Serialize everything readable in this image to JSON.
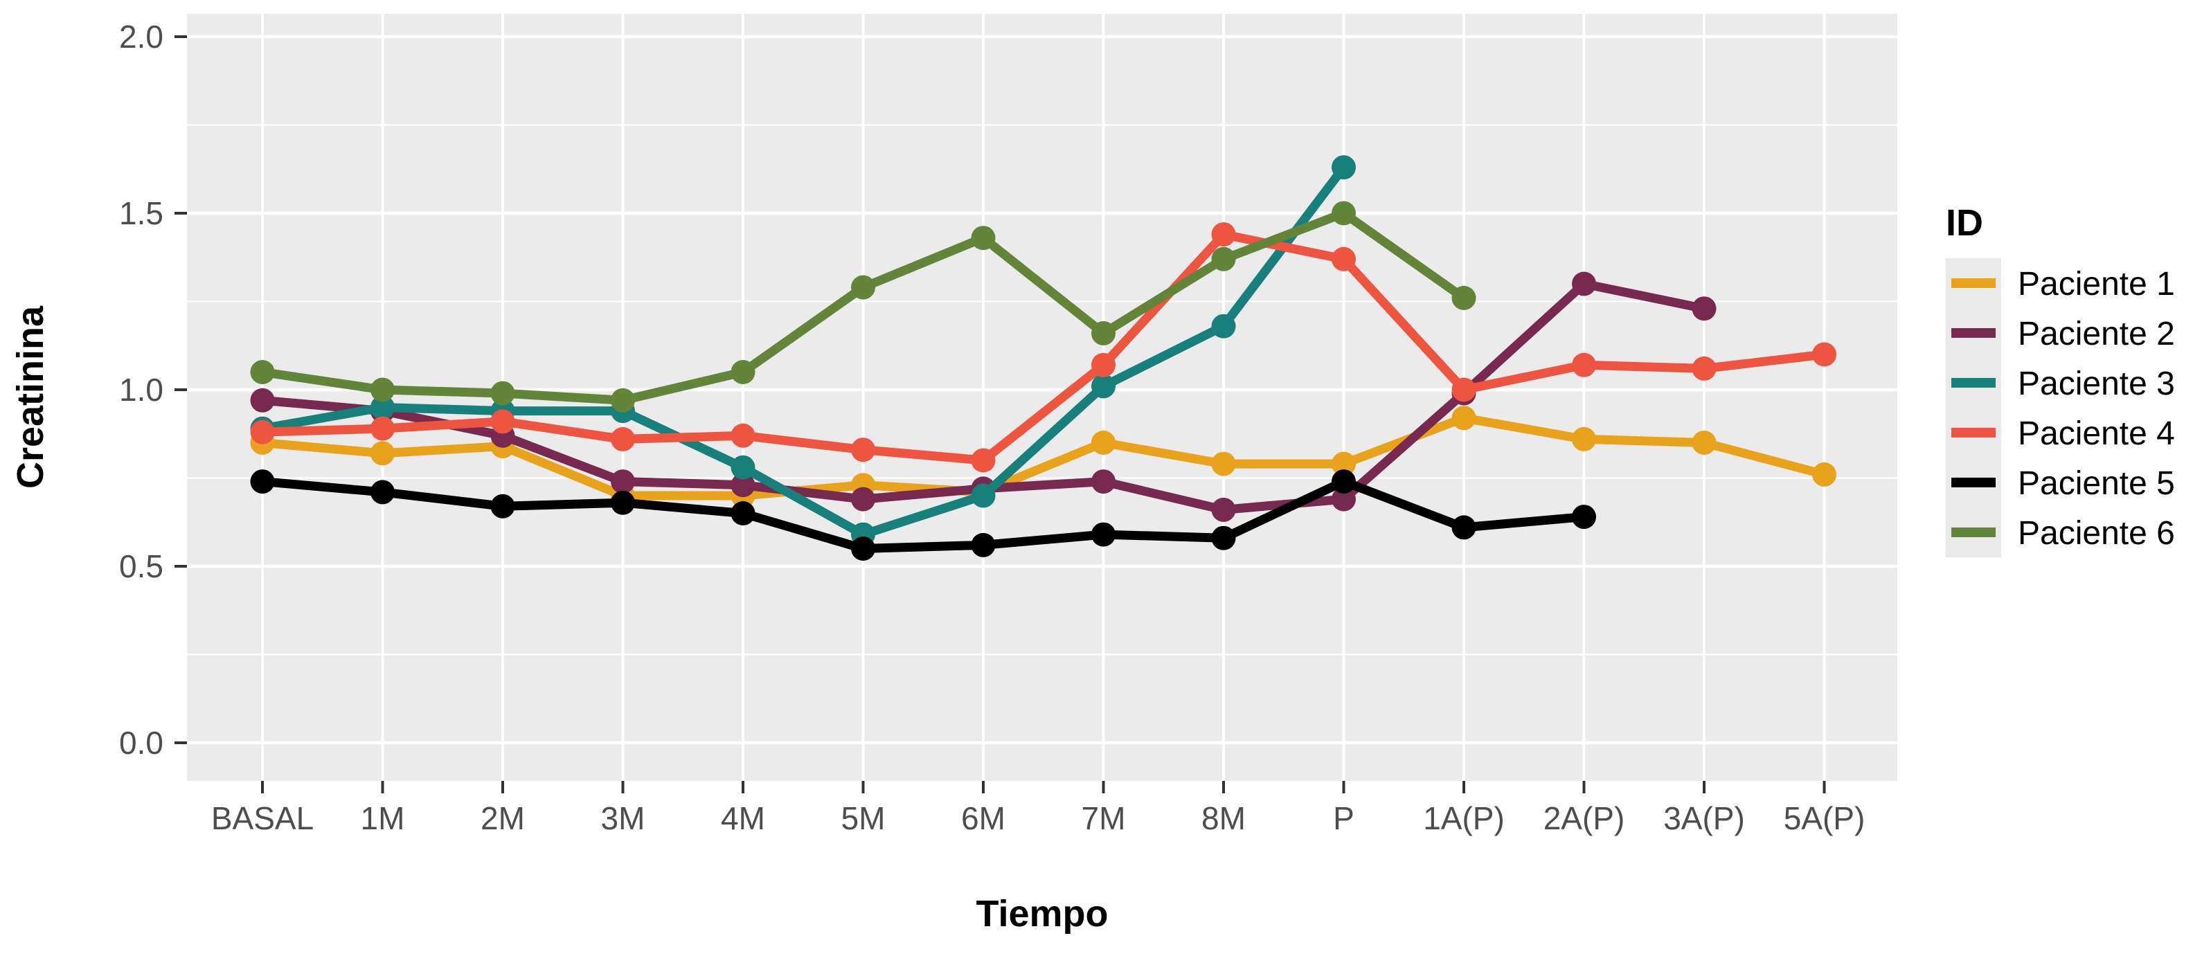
{
  "figure": {
    "background": "#FFFFFF",
    "panel_background": "#EBEBEB",
    "grid_color": "#FFFFFF",
    "tick_mark_color": "#333333"
  },
  "y_axis": {
    "title": "Creatinina",
    "tick_labels": [
      "2.0",
      "1.5",
      "1.0",
      "0.5",
      "0.0"
    ],
    "tick_values": [
      2.0,
      1.5,
      1.0,
      0.5,
      0.0
    ],
    "minor_values": [
      1.75,
      1.25,
      0.75,
      0.25
    ],
    "range": [
      0.0,
      2.0
    ]
  },
  "x_axis": {
    "title": "Tiempo",
    "categories": [
      "BASAL",
      "1M",
      "2M",
      "3M",
      "4M",
      "5M",
      "6M",
      "7M",
      "8M",
      "P",
      "1A(P)",
      "2A(P)",
      "3A(P)",
      "5A(P)"
    ]
  },
  "legend": {
    "title": "ID",
    "entries": [
      {
        "label": "Paciente 1",
        "color": "#E9A21B"
      },
      {
        "label": "Paciente 2",
        "color": "#77294F"
      },
      {
        "label": "Paciente 3",
        "color": "#17807A"
      },
      {
        "label": "Paciente 4",
        "color": "#EE5540"
      },
      {
        "label": "Paciente 5",
        "color": "#000000"
      },
      {
        "label": "Paciente 6",
        "color": "#63853A"
      }
    ]
  },
  "chart_data": {
    "type": "line",
    "title": "",
    "xlabel": "Tiempo",
    "ylabel": "Creatinina",
    "ylim": [
      0.0,
      2.0
    ],
    "grid": true,
    "legend_position": "right",
    "categories": [
      "BASAL",
      "1M",
      "2M",
      "3M",
      "4M",
      "5M",
      "6M",
      "7M",
      "8M",
      "P",
      "1A(P)",
      "2A(P)",
      "3A(P)",
      "5A(P)"
    ],
    "series": [
      {
        "name": "Paciente 1",
        "color": "#E9A21B",
        "values": [
          0.85,
          0.82,
          0.84,
          0.7,
          0.7,
          0.73,
          0.71,
          0.85,
          0.79,
          0.79,
          0.92,
          0.86,
          0.85,
          0.76
        ]
      },
      {
        "name": "Paciente 2",
        "color": "#77294F",
        "values": [
          0.97,
          0.94,
          0.87,
          0.74,
          0.73,
          0.69,
          0.72,
          0.74,
          0.66,
          0.69,
          0.99,
          1.3,
          1.23,
          null
        ]
      },
      {
        "name": "Paciente 3",
        "color": "#17807A",
        "values": [
          0.89,
          0.95,
          0.94,
          0.94,
          0.78,
          0.59,
          0.7,
          1.01,
          1.18,
          1.63,
          null,
          null,
          null,
          null
        ]
      },
      {
        "name": "Paciente 4",
        "color": "#EE5540",
        "values": [
          0.88,
          0.89,
          0.91,
          0.86,
          0.87,
          0.83,
          0.8,
          1.07,
          1.44,
          1.37,
          1.0,
          1.07,
          1.06,
          1.1
        ]
      },
      {
        "name": "Paciente 5",
        "color": "#000000",
        "values": [
          0.74,
          0.71,
          0.67,
          0.68,
          0.65,
          0.55,
          0.56,
          0.59,
          0.58,
          0.74,
          0.61,
          0.64,
          null,
          null
        ]
      },
      {
        "name": "Paciente 6",
        "color": "#63853A",
        "values": [
          1.05,
          1.0,
          0.99,
          0.97,
          1.05,
          1.29,
          1.43,
          1.16,
          1.37,
          1.5,
          1.26,
          null,
          null,
          null
        ]
      }
    ]
  }
}
